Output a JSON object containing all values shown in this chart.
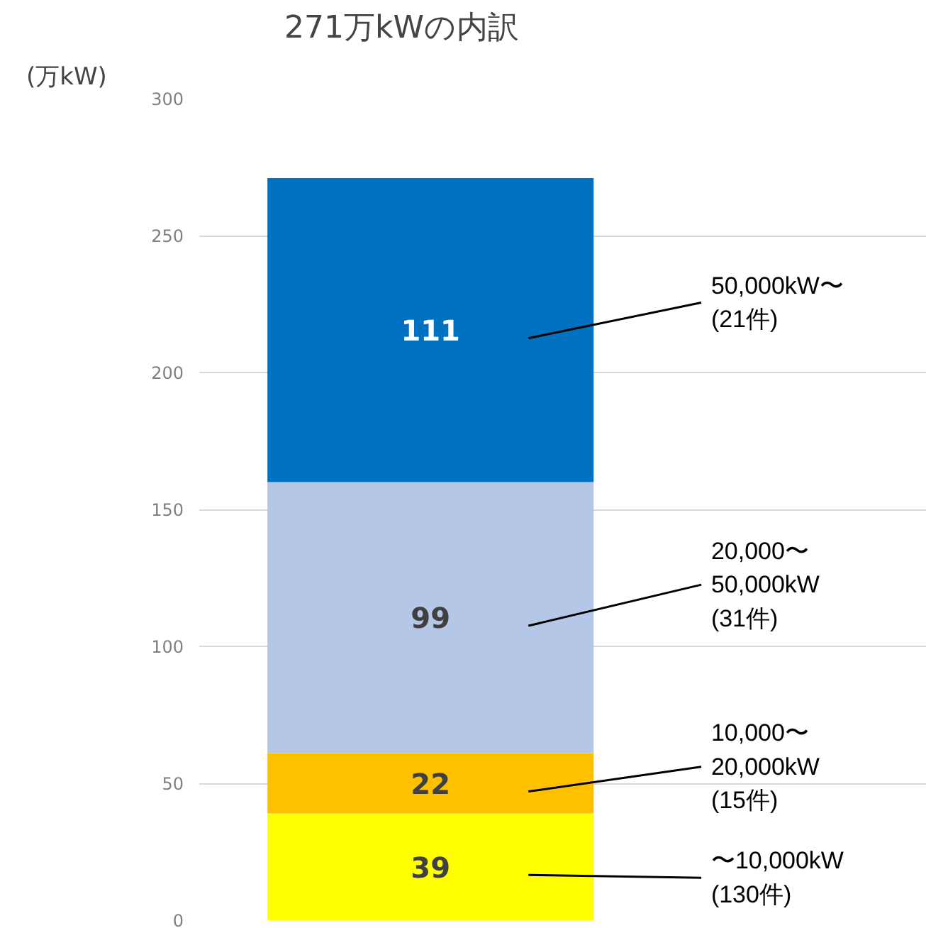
{
  "chart_data": {
    "type": "bar",
    "stacked": true,
    "title": "271万kWの内訳",
    "ylabel": "(万kW)",
    "categories": [
      null
    ],
    "series": [
      {
        "name": "〜10,000kW\n(130件)",
        "color": "#ffff00",
        "values": [
          39
        ]
      },
      {
        "name": "10,000〜\n20,000kW\n(15件)",
        "color": "#ffc000",
        "values": [
          22
        ]
      },
      {
        "name": "20,000〜\n50,000kW\n(31件)",
        "color": "#b4c7e7",
        "values": [
          99
        ]
      },
      {
        "name": "50,000kW〜\n(21件)",
        "color": "#0070c0",
        "values": [
          111
        ]
      }
    ],
    "data_labels": true,
    "ylim": [
      0,
      300
    ],
    "yticks": [
      0,
      50,
      100,
      150,
      200,
      250,
      300
    ],
    "grid": "y",
    "tick_labels": "y"
  }
}
